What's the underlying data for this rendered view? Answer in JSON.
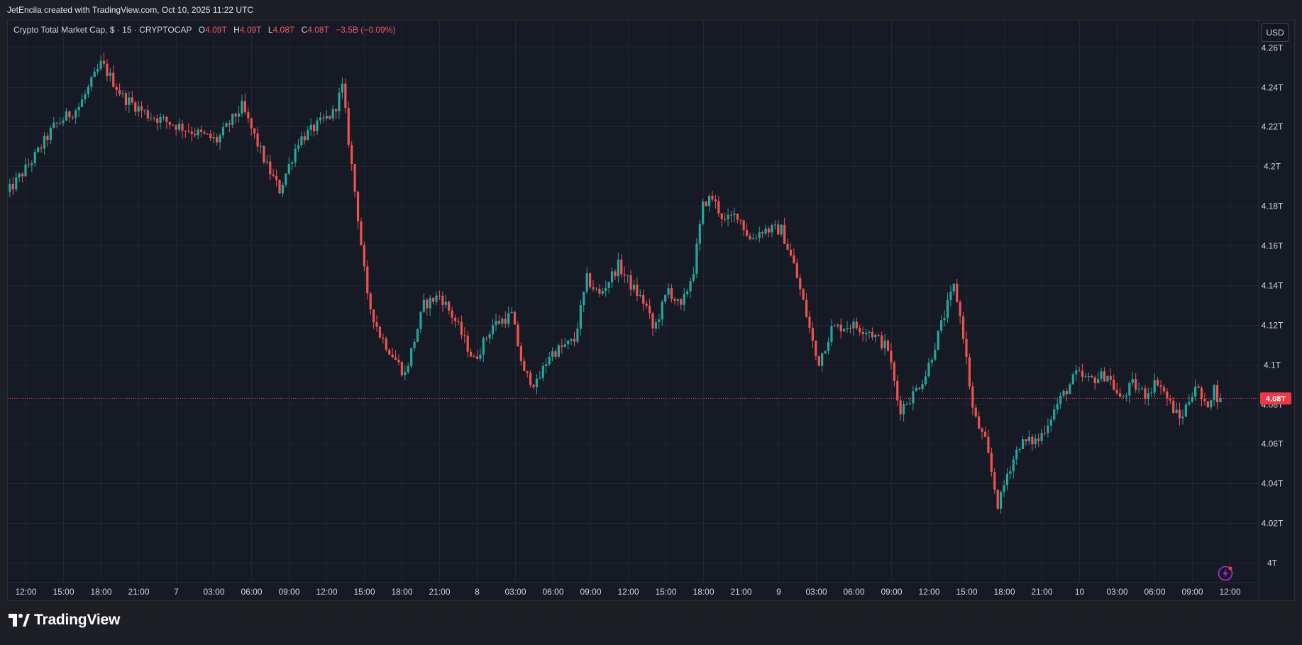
{
  "header": {
    "created_by": "JetEncila created with TradingView.com, Oct 10, 2025 11:22 UTC"
  },
  "legend": {
    "symbol": "Crypto Total Market Cap, $ · 15 · CRYPTOCAP",
    "o_label": "O",
    "o_value": "4.09T",
    "h_label": "H",
    "h_value": "4.09T",
    "l_label": "L",
    "l_value": "4.08T",
    "c_label": "C",
    "c_value": "4.08T",
    "change": "−3.5B (−0.09%)"
  },
  "currency_button": "USD",
  "footer": {
    "brand": "TradingView"
  },
  "colors": {
    "up": "#26a69a",
    "down": "#ef5350",
    "background": "#161a25",
    "grid": "#232632",
    "axis_text": "#d1d4dc",
    "last_price_badge": "#f23645"
  },
  "icons": [
    "tradingview-logo-icon",
    "lightning-alert-icon"
  ],
  "chart_data": {
    "type": "candlestick",
    "title": "Crypto Total Market Cap",
    "symbol": "CRYPTOCAP",
    "interval": "15",
    "currency": "USD",
    "y_unit": "T",
    "ylim": [
      3.99,
      4.2735
    ],
    "y_ticks": [
      4.0,
      4.02,
      4.04,
      4.06,
      4.08,
      4.1,
      4.12,
      4.14,
      4.16,
      4.18,
      4.2,
      4.22,
      4.24,
      4.26
    ],
    "y_tick_labels": [
      "4T",
      "4.02T",
      "4.04T",
      "4.06T",
      "4.08T",
      "4.1T",
      "4.12T",
      "4.14T",
      "4.16T",
      "4.18T",
      "4.2T",
      "4.22T",
      "4.24T",
      "4.26T"
    ],
    "x_ticks": [
      {
        "hours": 0,
        "label": "12:00"
      },
      {
        "hours": 3,
        "label": "15:00"
      },
      {
        "hours": 6,
        "label": "18:00"
      },
      {
        "hours": 9,
        "label": "21:00"
      },
      {
        "hours": 12,
        "label": "7"
      },
      {
        "hours": 15,
        "label": "03:00"
      },
      {
        "hours": 18,
        "label": "06:00"
      },
      {
        "hours": 21,
        "label": "09:00"
      },
      {
        "hours": 24,
        "label": "12:00"
      },
      {
        "hours": 27,
        "label": "15:00"
      },
      {
        "hours": 30,
        "label": "18:00"
      },
      {
        "hours": 33,
        "label": "21:00"
      },
      {
        "hours": 36,
        "label": "8"
      },
      {
        "hours": 39,
        "label": "03:00"
      },
      {
        "hours": 42,
        "label": "06:00"
      },
      {
        "hours": 45,
        "label": "09:00"
      },
      {
        "hours": 48,
        "label": "12:00"
      },
      {
        "hours": 51,
        "label": "15:00"
      },
      {
        "hours": 54,
        "label": "18:00"
      },
      {
        "hours": 57,
        "label": "21:00"
      },
      {
        "hours": 60,
        "label": "9"
      },
      {
        "hours": 63,
        "label": "03:00"
      },
      {
        "hours": 66,
        "label": "06:00"
      },
      {
        "hours": 69,
        "label": "09:00"
      },
      {
        "hours": 72,
        "label": "12:00"
      },
      {
        "hours": 75,
        "label": "15:00"
      },
      {
        "hours": 78,
        "label": "18:00"
      },
      {
        "hours": 81,
        "label": "21:00"
      },
      {
        "hours": 84,
        "label": "10"
      },
      {
        "hours": 87,
        "label": "03:00"
      },
      {
        "hours": 90,
        "label": "06:00"
      },
      {
        "hours": 93,
        "label": "09:00"
      },
      {
        "hours": 96,
        "label": "12:00"
      }
    ],
    "last_price": 4.083,
    "last_price_label": "4.08T",
    "key_points": [
      {
        "t": -1.5,
        "v": 4.184
      },
      {
        "t": 1.0,
        "v": 4.205
      },
      {
        "t": 2.5,
        "v": 4.22
      },
      {
        "t": 4.5,
        "v": 4.23
      },
      {
        "t": 6.3,
        "v": 4.252
      },
      {
        "t": 8.0,
        "v": 4.235
      },
      {
        "t": 10.0,
        "v": 4.226
      },
      {
        "t": 13.0,
        "v": 4.219
      },
      {
        "t": 15.5,
        "v": 4.213
      },
      {
        "t": 17.5,
        "v": 4.23
      },
      {
        "t": 19.5,
        "v": 4.2
      },
      {
        "t": 20.5,
        "v": 4.188
      },
      {
        "t": 22.0,
        "v": 4.213
      },
      {
        "t": 24.8,
        "v": 4.227
      },
      {
        "t": 25.5,
        "v": 4.24
      },
      {
        "t": 26.0,
        "v": 4.213
      },
      {
        "t": 26.8,
        "v": 4.172
      },
      {
        "t": 27.5,
        "v": 4.133
      },
      {
        "t": 28.5,
        "v": 4.115
      },
      {
        "t": 30.5,
        "v": 4.095
      },
      {
        "t": 32.0,
        "v": 4.13
      },
      {
        "t": 33.3,
        "v": 4.135
      },
      {
        "t": 34.5,
        "v": 4.122
      },
      {
        "t": 36.0,
        "v": 4.102
      },
      {
        "t": 37.5,
        "v": 4.12
      },
      {
        "t": 39.0,
        "v": 4.125
      },
      {
        "t": 40.0,
        "v": 4.095
      },
      {
        "t": 41.0,
        "v": 4.09
      },
      {
        "t": 42.0,
        "v": 4.105
      },
      {
        "t": 44.0,
        "v": 4.112
      },
      {
        "t": 45.0,
        "v": 4.143
      },
      {
        "t": 46.0,
        "v": 4.135
      },
      {
        "t": 47.5,
        "v": 4.15
      },
      {
        "t": 48.5,
        "v": 4.14
      },
      {
        "t": 49.7,
        "v": 4.13
      },
      {
        "t": 50.3,
        "v": 4.117
      },
      {
        "t": 51.5,
        "v": 4.138
      },
      {
        "t": 52.5,
        "v": 4.128
      },
      {
        "t": 53.5,
        "v": 4.148
      },
      {
        "t": 54.3,
        "v": 4.182
      },
      {
        "t": 55.0,
        "v": 4.184
      },
      {
        "t": 56.0,
        "v": 4.172
      },
      {
        "t": 57.0,
        "v": 4.176
      },
      {
        "t": 58.0,
        "v": 4.163
      },
      {
        "t": 59.0,
        "v": 4.168
      },
      {
        "t": 60.5,
        "v": 4.168
      },
      {
        "t": 61.5,
        "v": 4.15
      },
      {
        "t": 62.5,
        "v": 4.125
      },
      {
        "t": 63.4,
        "v": 4.1
      },
      {
        "t": 64.5,
        "v": 4.118
      },
      {
        "t": 66.0,
        "v": 4.12
      },
      {
        "t": 67.5,
        "v": 4.117
      },
      {
        "t": 69.0,
        "v": 4.108
      },
      {
        "t": 69.9,
        "v": 4.077
      },
      {
        "t": 71.0,
        "v": 4.085
      },
      {
        "t": 72.0,
        "v": 4.095
      },
      {
        "t": 73.5,
        "v": 4.125
      },
      {
        "t": 74.3,
        "v": 4.14
      },
      {
        "t": 75.0,
        "v": 4.115
      },
      {
        "t": 75.8,
        "v": 4.075
      },
      {
        "t": 76.8,
        "v": 4.06
      },
      {
        "t": 77.8,
        "v": 4.028
      },
      {
        "t": 78.5,
        "v": 4.045
      },
      {
        "t": 79.5,
        "v": 4.06
      },
      {
        "t": 81.0,
        "v": 4.062
      },
      {
        "t": 82.5,
        "v": 4.08
      },
      {
        "t": 84.0,
        "v": 4.095
      },
      {
        "t": 85.0,
        "v": 4.092
      },
      {
        "t": 86.5,
        "v": 4.095
      },
      {
        "t": 87.5,
        "v": 4.082
      },
      {
        "t": 88.5,
        "v": 4.09
      },
      {
        "t": 89.5,
        "v": 4.085
      },
      {
        "t": 90.5,
        "v": 4.092
      },
      {
        "t": 91.5,
        "v": 4.08
      },
      {
        "t": 92.3,
        "v": 4.072
      },
      {
        "t": 93.5,
        "v": 4.09
      },
      {
        "t": 94.3,
        "v": 4.078
      },
      {
        "t": 95.0,
        "v": 4.088
      },
      {
        "t": 95.3,
        "v": 4.083
      }
    ]
  }
}
